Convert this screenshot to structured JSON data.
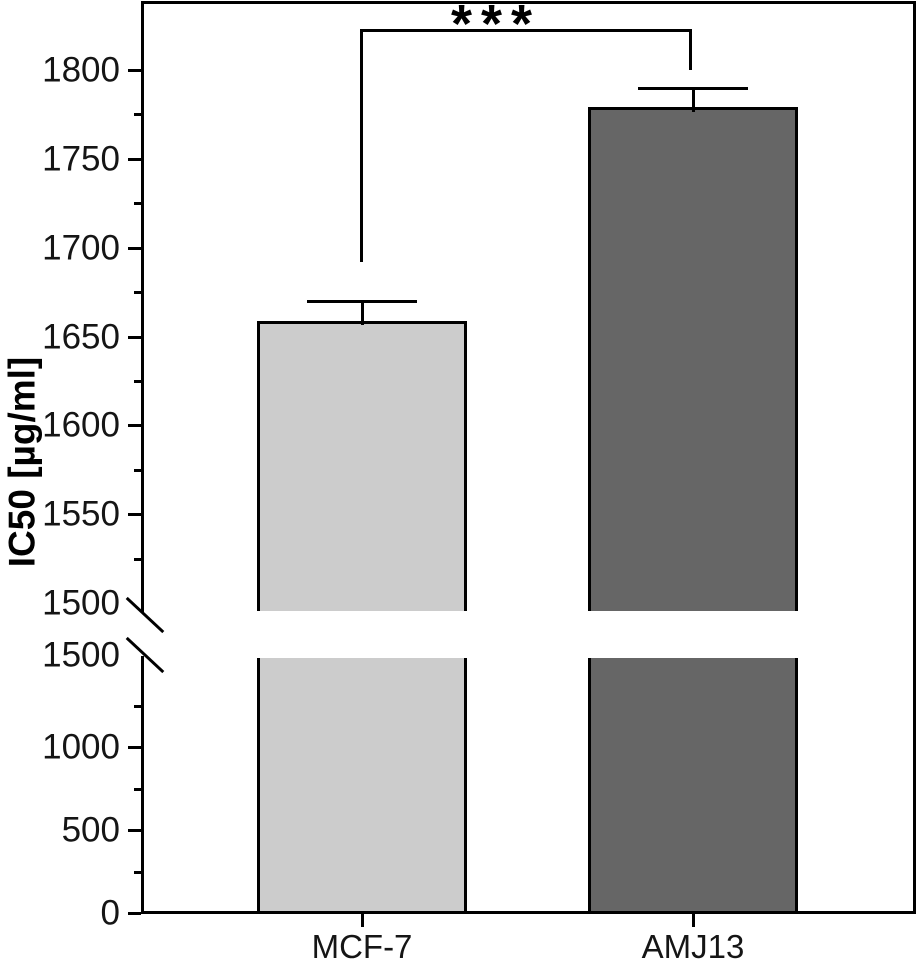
{
  "figure": {
    "y_axis_title": "IC50 [µg/ml]",
    "significance_marker": "***"
  },
  "chart_data": {
    "type": "bar",
    "title": "",
    "xlabel": "",
    "ylabel": "IC50 [µg/ml]",
    "categories": [
      "MCF-7",
      "AMJ13"
    ],
    "values": [
      1659,
      1779
    ],
    "errors_plus": [
      11,
      11
    ],
    "bar_colors": [
      "#cccccc",
      "#666666"
    ],
    "bar_border_color": "#000000",
    "significance": {
      "marker": "***",
      "between": [
        "MCF-7",
        "AMJ13"
      ]
    },
    "axis_break": true,
    "upper_axis": {
      "range": [
        1500,
        1838
      ],
      "major_ticks": [
        1800,
        1750,
        1700,
        1650,
        1600,
        1550,
        1500
      ],
      "tick_labels": [
        "1800",
        "1750",
        "1700",
        "1650",
        "1600",
        "1550",
        "1500"
      ],
      "minor_tick_step": 25
    },
    "lower_axis": {
      "range": [
        0,
        1500
      ],
      "major_ticks": [
        1500,
        1000,
        500,
        0
      ],
      "tick_labels": [
        "1500",
        "1000",
        "500",
        "0"
      ],
      "minor_tick_step": 250
    },
    "grid": false,
    "legend": false
  }
}
